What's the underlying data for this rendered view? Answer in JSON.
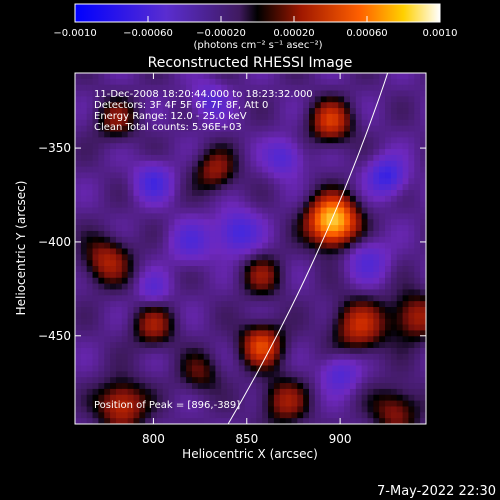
{
  "chart_data": {
    "type": "heatmap",
    "title": "Reconstructed RHESSI Image",
    "xlabel": "Heliocentric X (arcsec)",
    "ylabel": "Heliocentric Y (arcsec)",
    "xlim": [
      758,
      946
    ],
    "ylim": [
      -497,
      -310
    ],
    "x_ticks": [
      800,
      850,
      900
    ],
    "x_tick_labels": [
      "800",
      "850",
      "900"
    ],
    "y_ticks": [
      -350,
      -400,
      -450
    ],
    "y_tick_labels": [
      "−350",
      "−400",
      "−450"
    ],
    "colorbar": {
      "range": [
        -0.001,
        0.001
      ],
      "ticks": [
        -0.001,
        -0.0006,
        -0.0002,
        0.0002,
        0.0006,
        0.001
      ],
      "tick_labels": [
        "−0.0010",
        "−0.00060",
        "−0.00020",
        "0.00020",
        "0.00060",
        "0.0010"
      ],
      "units_label": "(photons cm⁻² s⁻¹ asec⁻²)"
    },
    "annotations": [
      "11-Dec-2008 18:20:44.000 to 18:23:32.000",
      "Detectors: 3F 4F 5F 6F 7F 8F, Att 0",
      "Energy Range: 12.0 - 25.0 keV",
      "Clean     Total counts: 5.96E+03"
    ],
    "peak_label": "Position of Peak = [896,-389]",
    "peak": [
      896,
      -389
    ],
    "limb": {
      "center": [
        0,
        0
      ],
      "radius": 976
    },
    "blobs": [
      [
        896,
        -389,
        1.0,
        9
      ],
      [
        858,
        -455,
        0.55,
        8
      ],
      [
        895,
        -336,
        0.5,
        8
      ],
      [
        910,
        -445,
        0.45,
        10
      ],
      [
        940,
        -440,
        0.4,
        9
      ],
      [
        783,
        -487,
        0.5,
        9
      ],
      [
        775,
        -410,
        0.4,
        9
      ],
      [
        800,
        -445,
        0.35,
        8
      ],
      [
        833,
        -362,
        0.35,
        8
      ],
      [
        780,
        -335,
        0.3,
        8
      ],
      [
        870,
        -485,
        0.35,
        9
      ],
      [
        930,
        -490,
        0.35,
        9
      ],
      [
        858,
        -418,
        0.3,
        8
      ],
      [
        825,
        -470,
        0.25,
        8
      ],
      [
        820,
        -400,
        -0.3,
        8
      ],
      [
        800,
        -368,
        -0.4,
        7
      ],
      [
        845,
        -395,
        -0.45,
        8
      ],
      [
        870,
        -355,
        -0.35,
        7
      ],
      [
        915,
        -410,
        -0.3,
        8
      ],
      [
        925,
        -365,
        -0.5,
        7
      ],
      [
        800,
        -425,
        -0.25,
        6
      ],
      [
        900,
        -470,
        -0.35,
        7
      ],
      [
        830,
        -325,
        -0.3,
        7
      ]
    ]
  },
  "footer": {
    "timestamp": "7-May-2022 22:30"
  }
}
